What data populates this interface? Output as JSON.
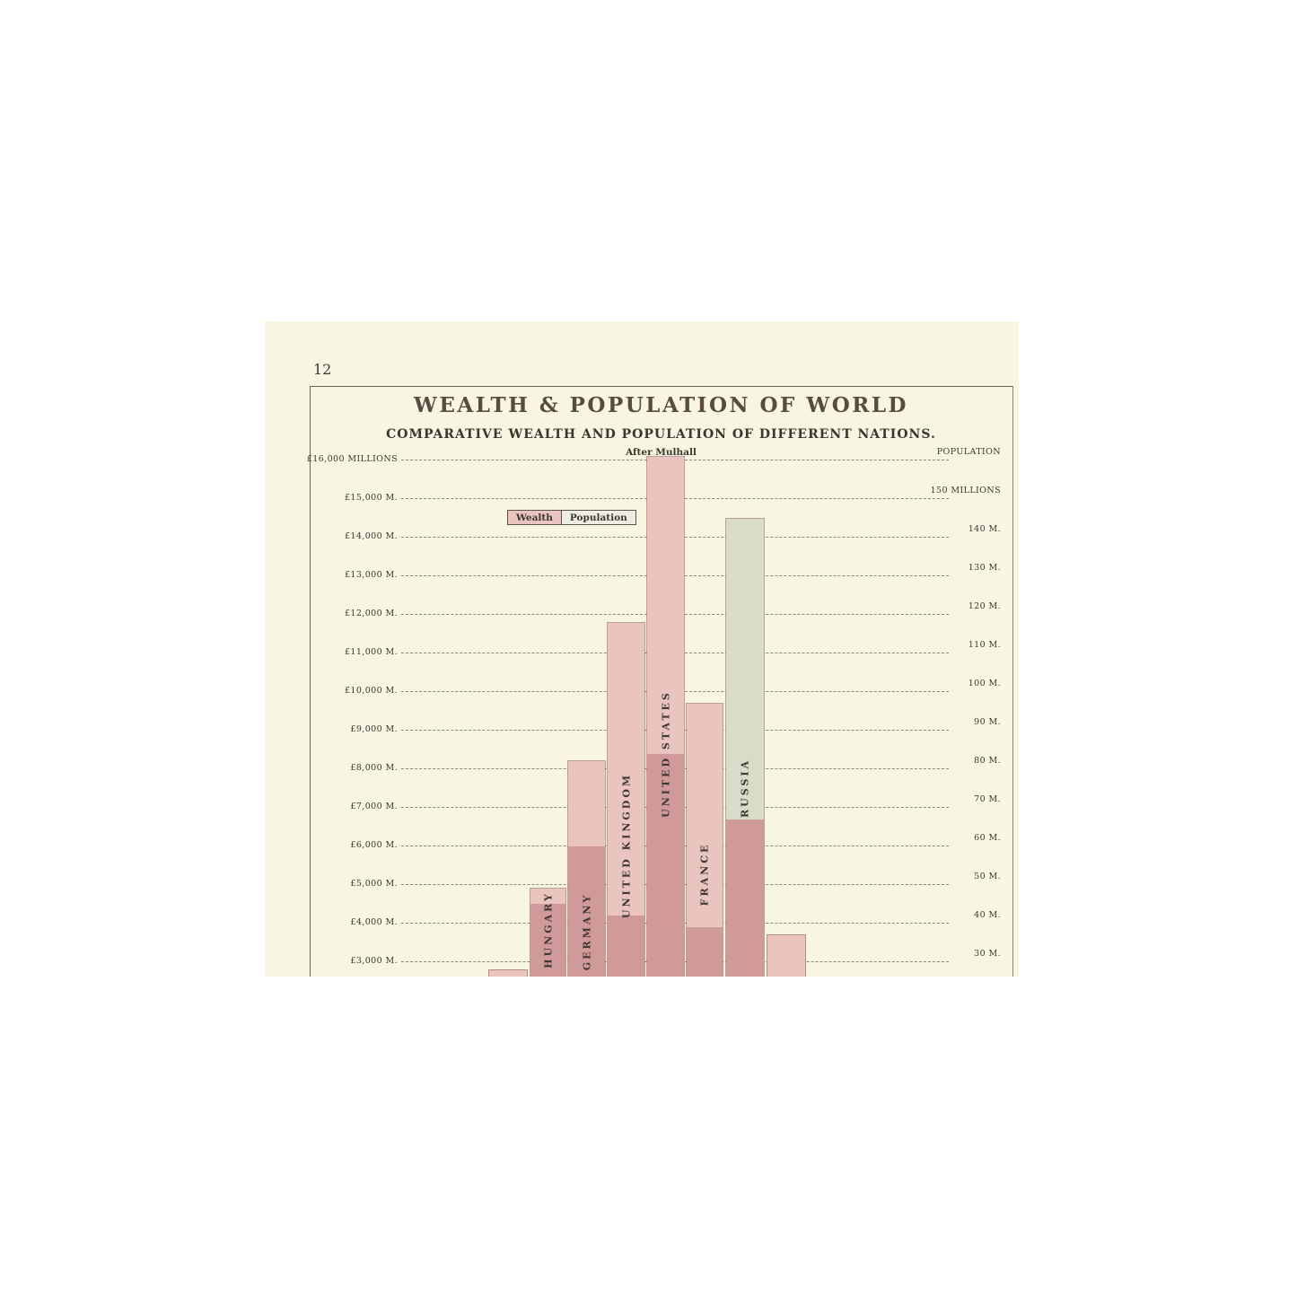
{
  "page": {
    "number": "12",
    "title": "WEALTH & POPULATION OF WORLD",
    "subtitle": "COMPARATIVE WEALTH AND POPULATION OF DIFFERENT NATIONS.",
    "attribution": "After Mulhall"
  },
  "legend": {
    "wealth_label": "Wealth",
    "population_label": "Population"
  },
  "axes": {
    "left_labels": [
      "£16,000 MILLIONS",
      "£15,000 M.",
      "£14,000 M.",
      "£13,000 M.",
      "£12,000 M.",
      "£11,000 M.",
      "£10,000 M.",
      "£9,000 M.",
      "£8,000 M.",
      "£7,000 M.",
      "£6,000 M.",
      "£5,000 M.",
      "£4,000 M.",
      "£3,000 M."
    ],
    "right_labels": [
      "POPULATION",
      "150 MILLIONS",
      "140 M.",
      "130 M.",
      "120 M.",
      "110 M.",
      "100 M.",
      "90 M.",
      "80 M.",
      "70 M.",
      "60 M.",
      "50 M.",
      "40 M.",
      "30 M."
    ]
  },
  "colors": {
    "canvas_background": "#ffffff",
    "page_background": "#f8f5e2",
    "wealth_bar": "#eac5bf",
    "overlap_bar": "#d09a9b",
    "population_bar": "#d9dcc9",
    "bar_border": "#9c6f6b",
    "grid_line": "#8f897d",
    "ink": "#3c3731",
    "title_ink": "#584c41"
  },
  "chart_data": {
    "type": "bar",
    "title": "WEALTH & POPULATION OF WORLD",
    "subtitle": "COMPARATIVE WEALTH AND POPULATION OF DIFFERENT NATIONS.",
    "source": "After Mulhall",
    "categories": [
      "",
      "HUNGARY",
      "GERMANY",
      "UNITED KINGDOM",
      "UNITED STATES",
      "FRANCE",
      "RUSSIA",
      ""
    ],
    "series": [
      {
        "name": "Wealth",
        "unit": "£ millions",
        "values": [
          2800,
          4900,
          8200,
          11800,
          16100,
          9700,
          6700,
          3700
        ]
      },
      {
        "name": "Population",
        "unit": "millions of people",
        "values": [
          null,
          45,
          60,
          42,
          84,
          39,
          145,
          null
        ]
      }
    ],
    "left_axis": {
      "label": "Wealth in £ millions",
      "top": 16000,
      "step": 1000,
      "lowest_visible_tick": 3000
    },
    "right_axis": {
      "header": "POPULATION",
      "top": 160,
      "step": 10,
      "lowest_visible_tick": 30
    },
    "grid": "dashed horizontal lines shared by both scales (£1,000 M = 10 M people)",
    "legend_position": "upper left of plot area",
    "notes": "Bottom of chart (bar bases and some country labels) is cropped at the page edge; two outer bars have no visible labels."
  }
}
